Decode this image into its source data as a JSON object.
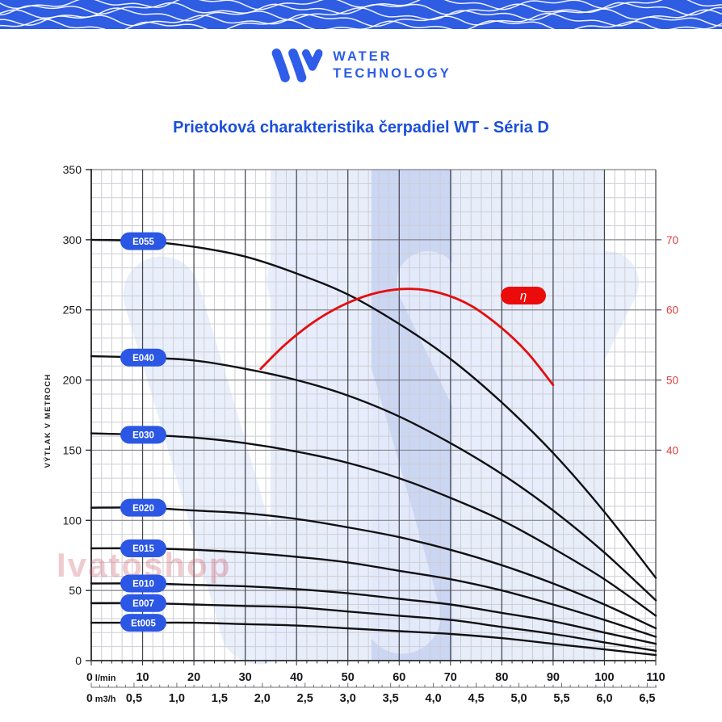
{
  "banner": {
    "bg_color": "#2e5ce2",
    "wave_color": "#ffffff"
  },
  "logo": {
    "line1": "WATER",
    "line2": "TECHNOLOGY",
    "brand_color": "#2d5be8"
  },
  "title": {
    "text": "Prietoková charakteristika čerpadiel WT - Séria D",
    "color": "#1b4edb"
  },
  "watermark": {
    "text": "Ivatoshop",
    "color": "rgba(205,95,108,0.33)"
  },
  "chart_data": {
    "type": "line",
    "title": "Prietoková charakteristika čerpadiel WT - Séria D",
    "grid": "on",
    "y_left_axis": {
      "label": "VÝTLAK V METROCH",
      "range": [
        0,
        350
      ],
      "ticks": [
        0,
        50,
        100,
        150,
        200,
        250,
        300,
        350
      ],
      "minor_step": 10,
      "color": "#17171a"
    },
    "y_right_axis": {
      "range": [
        40,
        70
      ],
      "ticks": [
        40,
        50,
        60,
        70
      ],
      "color": "#e63c3c"
    },
    "x_axis_lmin": {
      "zero_label": "0",
      "unit_label": "l/min",
      "range": [
        0,
        110
      ],
      "ticks": [
        10,
        20,
        30,
        40,
        50,
        60,
        70,
        80,
        90,
        100,
        110
      ],
      "minor_step": 2,
      "color": "#17171a"
    },
    "x_axis_m3h": {
      "zero_label": "0",
      "unit_label": "m3/h",
      "range": [
        0,
        6.5
      ],
      "tick_labels": [
        "0,5",
        "1,0",
        "1,5",
        "2,0",
        "2,5",
        "3,0",
        "3,5",
        "4,0",
        "4,5",
        "5,0",
        "5,5",
        "6,0",
        "6,5"
      ],
      "tick_values": [
        0.5,
        1.0,
        1.5,
        2.0,
        2.5,
        3.0,
        3.5,
        4.0,
        4.5,
        5.0,
        5.5,
        6.0,
        6.5
      ],
      "color": "#17171a"
    },
    "pump_curves": {
      "color": "#101014",
      "pill_color": "#2b57e4",
      "pill_text_color": "#ffffff",
      "series": [
        {
          "name": "E055",
          "points": [
            [
              0,
              300
            ],
            [
              10,
              299
            ],
            [
              20,
              295
            ],
            [
              30,
              288
            ],
            [
              40,
              276
            ],
            [
              50,
              261
            ],
            [
              60,
              240
            ],
            [
              70,
              215
            ],
            [
              80,
              184
            ],
            [
              90,
              148
            ],
            [
              100,
              106
            ],
            [
              110,
              59
            ]
          ]
        },
        {
          "name": "E040",
          "points": [
            [
              0,
              217
            ],
            [
              10,
              216
            ],
            [
              20,
              214
            ],
            [
              30,
              208
            ],
            [
              40,
              200
            ],
            [
              50,
              189
            ],
            [
              60,
              174
            ],
            [
              70,
              155
            ],
            [
              80,
              133
            ],
            [
              90,
              107
            ],
            [
              100,
              77
            ],
            [
              110,
              43
            ]
          ]
        },
        {
          "name": "E030",
          "points": [
            [
              0,
              162
            ],
            [
              10,
              161
            ],
            [
              20,
              159
            ],
            [
              30,
              155
            ],
            [
              40,
              149
            ],
            [
              50,
              141
            ],
            [
              60,
              130
            ],
            [
              70,
              116
            ],
            [
              80,
              100
            ],
            [
              90,
              80
            ],
            [
              100,
              58
            ],
            [
              110,
              32
            ]
          ]
        },
        {
          "name": "E020",
          "points": [
            [
              0,
              109
            ],
            [
              10,
              109
            ],
            [
              20,
              107
            ],
            [
              30,
              105
            ],
            [
              40,
              101
            ],
            [
              50,
              95
            ],
            [
              60,
              88
            ],
            [
              70,
              79
            ],
            [
              80,
              68
            ],
            [
              90,
              55
            ],
            [
              100,
              40
            ],
            [
              110,
              23
            ]
          ]
        },
        {
          "name": "E015",
          "points": [
            [
              0,
              80
            ],
            [
              10,
              80
            ],
            [
              20,
              79
            ],
            [
              30,
              77
            ],
            [
              40,
              74
            ],
            [
              50,
              70
            ],
            [
              60,
              64
            ],
            [
              70,
              58
            ],
            [
              80,
              50
            ],
            [
              90,
              40
            ],
            [
              100,
              29
            ],
            [
              110,
              17
            ]
          ]
        },
        {
          "name": "E010",
          "points": [
            [
              0,
              55
            ],
            [
              10,
              55
            ],
            [
              20,
              54
            ],
            [
              30,
              53
            ],
            [
              40,
              51
            ],
            [
              50,
              48
            ],
            [
              60,
              44
            ],
            [
              70,
              40
            ],
            [
              80,
              34
            ],
            [
              90,
              28
            ],
            [
              100,
              20
            ],
            [
              110,
              12
            ]
          ]
        },
        {
          "name": "E007",
          "points": [
            [
              0,
              41
            ],
            [
              10,
              41
            ],
            [
              20,
              40
            ],
            [
              30,
              39
            ],
            [
              40,
              38
            ],
            [
              50,
              35
            ],
            [
              60,
              32
            ],
            [
              70,
              29
            ],
            [
              80,
              24
            ],
            [
              90,
              19
            ],
            [
              100,
              13
            ],
            [
              110,
              7
            ]
          ]
        },
        {
          "name": "Et005",
          "points": [
            [
              0,
              27
            ],
            [
              10,
              27
            ],
            [
              20,
              27
            ],
            [
              30,
              26
            ],
            [
              40,
              25
            ],
            [
              50,
              23
            ],
            [
              60,
              21
            ],
            [
              70,
              19
            ],
            [
              80,
              16
            ],
            [
              90,
              12
            ],
            [
              100,
              8
            ],
            [
              110,
              4
            ]
          ]
        }
      ]
    },
    "efficiency_curve": {
      "label": "η",
      "color": "#e60d0d",
      "pill_color": "#ec0b0b",
      "axis": "right",
      "points": [
        [
          33,
          51.6
        ],
        [
          38,
          55.2
        ],
        [
          44,
          58.6
        ],
        [
          50,
          61.0
        ],
        [
          56,
          62.5
        ],
        [
          62,
          63.0
        ],
        [
          68,
          62.4
        ],
        [
          74,
          60.6
        ],
        [
          80,
          57.4
        ],
        [
          85,
          53.9
        ],
        [
          90,
          49.3
        ]
      ]
    }
  }
}
